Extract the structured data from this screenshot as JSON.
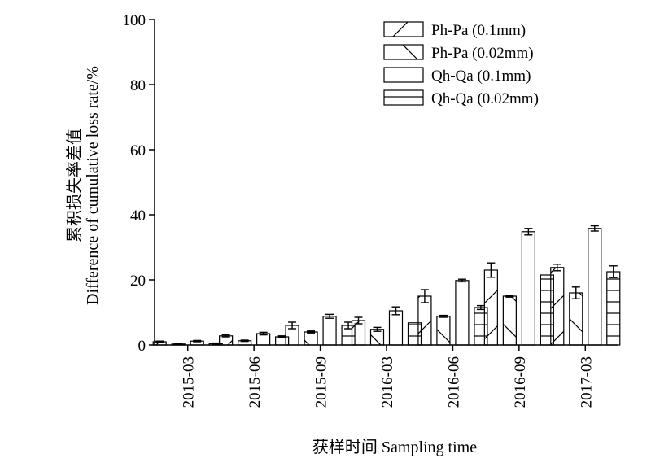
{
  "chart_data": {
    "type": "bar",
    "xlabel": "获样时间 Sampling time",
    "ylabel_line1": "累积损失率差值",
    "ylabel_line2": "Difference of cumulative loss rate/%",
    "ylim": [
      0,
      100
    ],
    "yticks": [
      0,
      20,
      40,
      60,
      80,
      100
    ],
    "grid": false,
    "legend_position": "top-right",
    "categories": [
      "2015-03",
      "2015-06",
      "2015-09",
      "2016-03",
      "2016-06",
      "2016-09",
      "2017-03"
    ],
    "series": [
      {
        "name": "Ph-Pa (0.1mm)",
        "pattern": "diag-up",
        "values": [
          1.0,
          2.8,
          6.0,
          7.5,
          15.0,
          23.0,
          23.8
        ],
        "errors": [
          0.2,
          0.3,
          1.0,
          1.0,
          2.0,
          2.2,
          1.0
        ]
      },
      {
        "name": "Ph-Pa (0.02mm)",
        "pattern": "diag-down",
        "values": [
          0.3,
          1.3,
          4.0,
          4.8,
          8.8,
          15.0,
          16.0
        ],
        "errors": [
          0.2,
          0.2,
          0.3,
          0.6,
          0.3,
          0.3,
          1.8
        ]
      },
      {
        "name": "Qh-Qa (0.1mm)",
        "pattern": "none",
        "values": [
          1.2,
          3.5,
          8.8,
          10.5,
          19.8,
          34.8,
          35.8
        ],
        "errors": [
          0.2,
          0.4,
          0.6,
          1.2,
          0.4,
          1.0,
          0.8
        ]
      },
      {
        "name": "Qh-Qa (0.02mm)",
        "pattern": "horizontal",
        "values": [
          0.4,
          2.5,
          6.0,
          6.8,
          11.5,
          21.5,
          22.5
        ],
        "errors": [
          0.2,
          0.3,
          1.0,
          0.0,
          0.6,
          0.0,
          1.8
        ]
      }
    ]
  }
}
